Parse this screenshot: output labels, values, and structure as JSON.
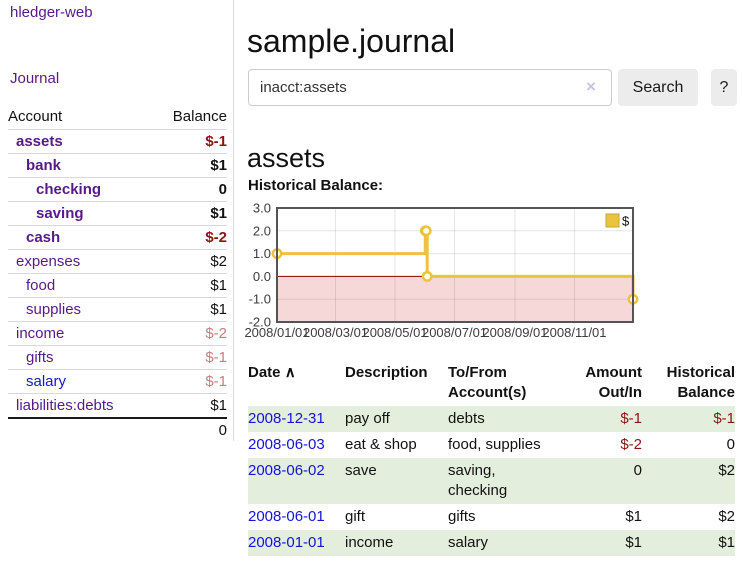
{
  "sidebar": {
    "brand": "hledger-web",
    "nav": {
      "journal": "Journal"
    },
    "accounts_table": {
      "headers": {
        "account": "Account",
        "balance": "Balance"
      },
      "rows": [
        {
          "account": "assets",
          "balance": "$-1"
        },
        {
          "account": "bank",
          "balance": "$1"
        },
        {
          "account": "checking",
          "balance": "0"
        },
        {
          "account": "saving",
          "balance": "$1"
        },
        {
          "account": "cash",
          "balance": "$-2"
        },
        {
          "account": "expenses",
          "balance": "$2"
        },
        {
          "account": "food",
          "balance": "$1"
        },
        {
          "account": "supplies",
          "balance": "$1"
        },
        {
          "account": "income",
          "balance": "$-2"
        },
        {
          "account": "gifts",
          "balance": "$-1"
        },
        {
          "account": "salary",
          "balance": "$-1"
        },
        {
          "account": "liabilities:debts",
          "balance": "$1"
        }
      ],
      "total": "0"
    }
  },
  "header": {
    "title": "sample.journal"
  },
  "search": {
    "value": "inacct:assets",
    "button": "Search",
    "help_button": "?"
  },
  "icons": {
    "clear": "×",
    "sort_asc": "∧"
  },
  "account_page": {
    "title": "assets",
    "chart_label": "Historical Balance:"
  },
  "chart_data": {
    "type": "line",
    "title": "Historical Balance",
    "step": true,
    "series": [
      {
        "name": "$",
        "color": "#edc240",
        "points": [
          [
            "2008-01-01",
            1
          ],
          [
            "2008-06-01",
            2
          ],
          [
            "2008-06-02",
            2
          ],
          [
            "2008-06-03",
            0
          ],
          [
            "2008-12-31",
            -1
          ]
        ]
      }
    ],
    "x_range": [
      "2008-01-01",
      "2008-12-31"
    ],
    "y_range": [
      -2,
      3
    ],
    "x_ticks": [
      "2008/01/01",
      "2008/03/01",
      "2008/05/01",
      "2008/07/01",
      "2008/09/01",
      "2008/11/01"
    ],
    "y_ticks": [
      "3.0",
      "2.0",
      "1.0",
      "0.0",
      "-1.0",
      "-2.0"
    ],
    "legend_position": "top-right",
    "grid": true,
    "negative_region_color": "#f7d8d8",
    "zero_line_color": "#8b0000",
    "border_color": "#545454",
    "tick_label_color": "#3c3c3c"
  },
  "register_table": {
    "headers": {
      "date": "Date",
      "description": "Description",
      "accounts": "To/From Account(s)",
      "amount": "Amount Out/In",
      "balance": "Historical Balance"
    },
    "rows": [
      {
        "date": "2008-12-31",
        "description": "pay off",
        "accounts": "debts",
        "amount": "$-1",
        "balance": "$-1"
      },
      {
        "date": "2008-06-03",
        "description": "eat & shop",
        "accounts": "food, supplies",
        "amount": "$-2",
        "balance": "0"
      },
      {
        "date": "2008-06-02",
        "description": "save",
        "accounts": "saving, checking",
        "amount": "0",
        "balance": "$2"
      },
      {
        "date": "2008-06-01",
        "description": "gift",
        "accounts": "gifts",
        "amount": "$1",
        "balance": "$2"
      },
      {
        "date": "2008-01-01",
        "description": "income",
        "accounts": "salary",
        "amount": "$1",
        "balance": "$1"
      }
    ]
  },
  "colors": {
    "link_purple": "#551a8b",
    "link_blue": "#1414d2",
    "negative": "#8b1515",
    "negative_faded": "#c47e7e",
    "row_green": "#e3efdc",
    "series_yellow": "#edc240"
  }
}
